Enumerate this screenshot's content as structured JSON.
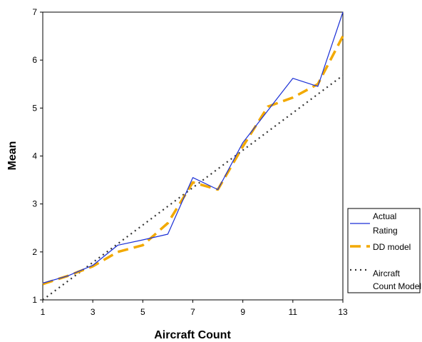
{
  "chart_data": {
    "type": "line",
    "title": "",
    "xlabel": "Aircraft Count",
    "ylabel": "Mean",
    "xlim": [
      1,
      13
    ],
    "ylim": [
      1,
      7
    ],
    "x_ticks": [
      1,
      3,
      5,
      7,
      9,
      11,
      13
    ],
    "y_ticks": [
      1,
      2,
      3,
      4,
      5,
      6,
      7
    ],
    "grid": false,
    "legend_position": "right",
    "x": [
      1,
      2,
      3,
      4,
      5,
      6,
      7,
      8,
      9,
      10,
      11,
      12,
      13
    ],
    "series": [
      {
        "name": "Actual Rating",
        "name_lines": [
          "Actual",
          "Rating"
        ],
        "style": "solid",
        "color": "#1a2fd6",
        "values": [
          1.35,
          1.5,
          1.72,
          2.14,
          2.25,
          2.37,
          3.55,
          3.3,
          4.28,
          4.95,
          5.62,
          5.45,
          7.0
        ]
      },
      {
        "name": "DD model",
        "name_lines": [
          "DD model"
        ],
        "style": "dashed",
        "color": "#f2a900",
        "values": [
          1.33,
          1.5,
          1.7,
          2.0,
          2.14,
          2.6,
          3.45,
          3.3,
          4.2,
          5.03,
          5.22,
          5.5,
          6.5
        ]
      },
      {
        "name": "Aircraft Count Model",
        "name_lines": [
          "Aircraft",
          "Count Model"
        ],
        "style": "dotted",
        "color": "#333333",
        "values": [
          1.0,
          1.39,
          1.78,
          2.17,
          2.56,
          2.95,
          3.34,
          3.73,
          4.12,
          4.51,
          4.9,
          5.29,
          5.68
        ]
      }
    ]
  }
}
